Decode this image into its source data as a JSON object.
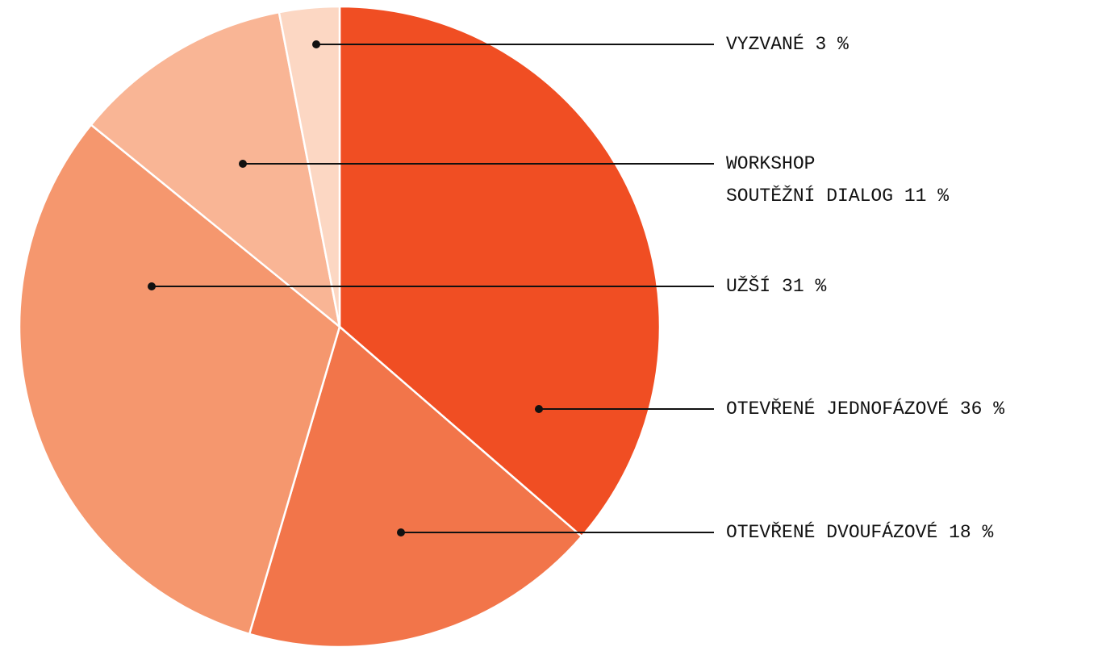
{
  "chart_data": {
    "type": "pie",
    "categories": [
      [
        "OTEVŘENÉ JEDNOFÁZOVÉ"
      ],
      [
        "OTEVŘENÉ DVOUFÁZOVÉ"
      ],
      [
        "UŽŠÍ"
      ],
      [
        "WORKSHOP",
        "SOUTĚŽNÍ DIALOG"
      ],
      [
        "VYZVANÉ"
      ]
    ],
    "values": [
      36,
      18,
      31,
      11,
      3
    ],
    "value_labels": [
      "36 %",
      "18 %",
      "31 %",
      "11 %",
      "3 %"
    ],
    "colors": [
      "#f04e23",
      "#f2754a",
      "#f5976e",
      "#f9b595",
      "#fcd7c3"
    ]
  }
}
